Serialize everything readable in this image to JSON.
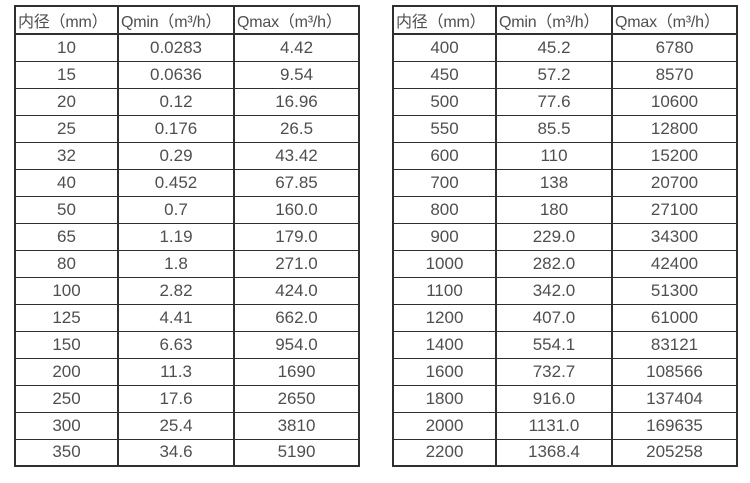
{
  "page": {
    "background_color": "#ffffff",
    "text_color": "#4f4f4f",
    "border_color": "#2f2f2f"
  },
  "chart_data": [
    {
      "type": "table",
      "name": "flow-rate-table-small-diameters",
      "columns": [
        "内径（mm）",
        "Qmin（m³/h）",
        "Qmax（m³/h）"
      ],
      "rows": [
        [
          "10",
          "0.0283",
          "4.42"
        ],
        [
          "15",
          "0.0636",
          "9.54"
        ],
        [
          "20",
          "0.12",
          "16.96"
        ],
        [
          "25",
          "0.176",
          "26.5"
        ],
        [
          "32",
          "0.29",
          "43.42"
        ],
        [
          "40",
          "0.452",
          "67.85"
        ],
        [
          "50",
          "0.7",
          "160.0"
        ],
        [
          "65",
          "1.19",
          "179.0"
        ],
        [
          "80",
          "1.8",
          "271.0"
        ],
        [
          "100",
          "2.82",
          "424.0"
        ],
        [
          "125",
          "4.41",
          "662.0"
        ],
        [
          "150",
          "6.63",
          "954.0"
        ],
        [
          "200",
          "11.3",
          "1690"
        ],
        [
          "250",
          "17.6",
          "2650"
        ],
        [
          "300",
          "25.4",
          "3810"
        ],
        [
          "350",
          "34.6",
          "5190"
        ]
      ]
    },
    {
      "type": "table",
      "name": "flow-rate-table-large-diameters",
      "columns": [
        "内径（mm）",
        "Qmin（m³/h）",
        "Qmax（m³/h）"
      ],
      "rows": [
        [
          "400",
          "45.2",
          "6780"
        ],
        [
          "450",
          "57.2",
          "8570"
        ],
        [
          "500",
          "77.6",
          "10600"
        ],
        [
          "550",
          "85.5",
          "12800"
        ],
        [
          "600",
          "110",
          "15200"
        ],
        [
          "700",
          "138",
          "20700"
        ],
        [
          "800",
          "180",
          "27100"
        ],
        [
          "900",
          "229.0",
          "34300"
        ],
        [
          "1000",
          "282.0",
          "42400"
        ],
        [
          "1100",
          "342.0",
          "51300"
        ],
        [
          "1200",
          "407.0",
          "61000"
        ],
        [
          "1400",
          "554.1",
          "83121"
        ],
        [
          "1600",
          "732.7",
          "108566"
        ],
        [
          "1800",
          "916.0",
          "137404"
        ],
        [
          "2000",
          "1131.0",
          "169635"
        ],
        [
          "2200",
          "1368.4",
          "205258"
        ]
      ]
    }
  ]
}
